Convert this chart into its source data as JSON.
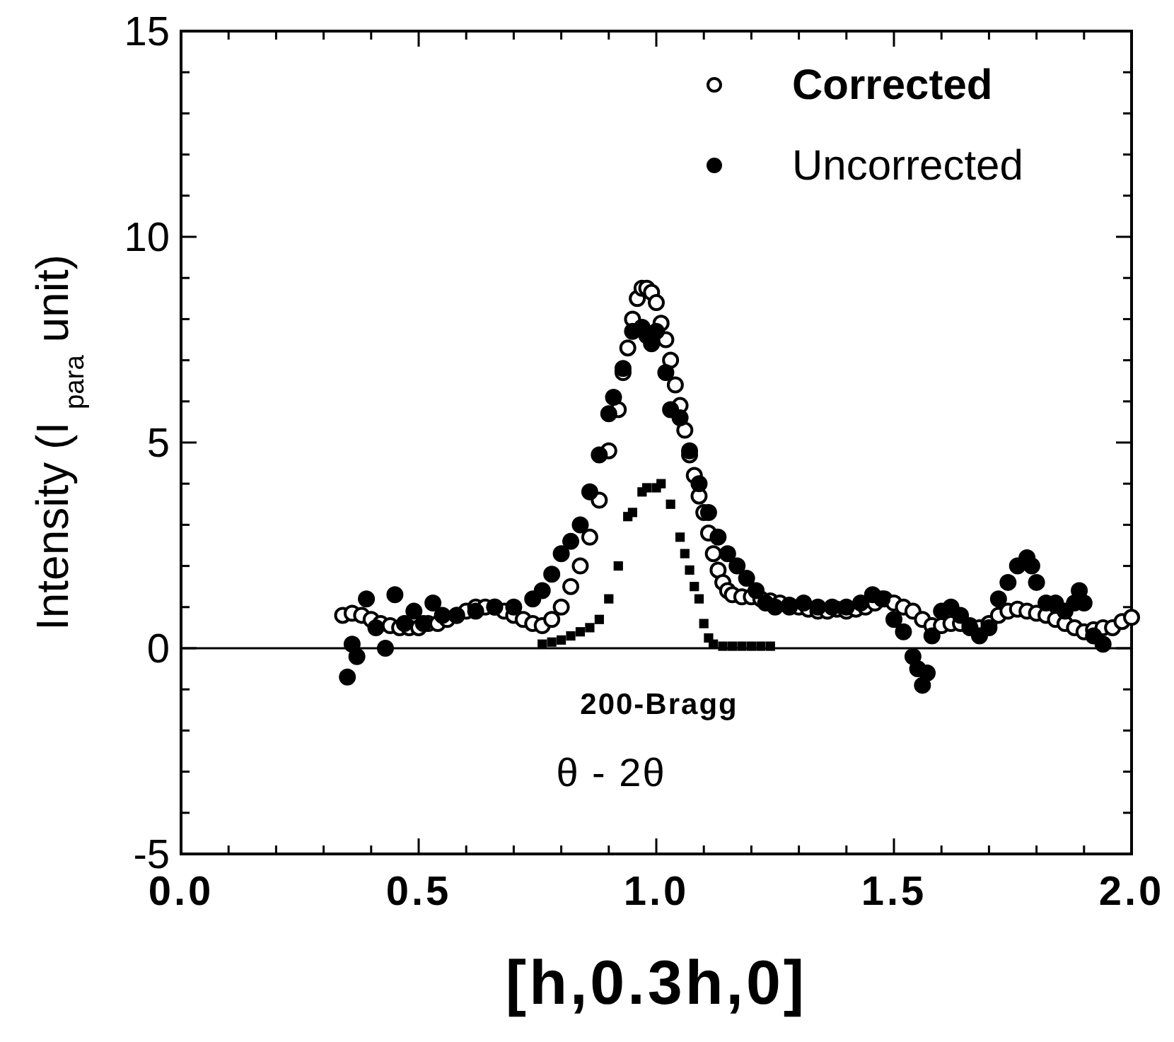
{
  "chart_data": {
    "type": "scatter",
    "xlabel": "[h,0.3h,0]",
    "ylabel": "Intensity  (I $_{para}$ unit)",
    "xlim": [
      0,
      2
    ],
    "ylim": [
      -5,
      15
    ],
    "xticks": [
      {
        "value": 0,
        "label": "0.0"
      },
      {
        "value": 0.1,
        "label": null
      },
      {
        "value": 0.2,
        "label": null
      },
      {
        "value": 0.3,
        "label": null
      },
      {
        "value": 0.4,
        "label": null
      },
      {
        "value": 0.5,
        "label": "0.5"
      },
      {
        "value": 0.6,
        "label": null
      },
      {
        "value": 0.7,
        "label": null
      },
      {
        "value": 0.8,
        "label": null
      },
      {
        "value": 0.9,
        "label": null
      },
      {
        "value": 1,
        "label": "1.0"
      },
      {
        "value": 1.1,
        "label": null
      },
      {
        "value": 1.2,
        "label": null
      },
      {
        "value": 1.3,
        "label": null
      },
      {
        "value": 1.4,
        "label": null
      },
      {
        "value": 1.5,
        "label": "1.5"
      },
      {
        "value": 1.6,
        "label": null
      },
      {
        "value": 1.7,
        "label": null
      },
      {
        "value": 1.8,
        "label": null
      },
      {
        "value": 1.9,
        "label": null
      },
      {
        "value": 2,
        "label": "2.0"
      }
    ],
    "yticks": [
      -5,
      {
        "value": -4,
        "label": null
      },
      {
        "value": -3,
        "label": null
      },
      {
        "value": -2,
        "label": null
      },
      {
        "value": -1,
        "label": null
      },
      0,
      {
        "value": 1,
        "label": null
      },
      {
        "value": 2,
        "label": null
      },
      {
        "value": 3,
        "label": null
      },
      {
        "value": 4,
        "label": null
      },
      5,
      {
        "value": 6,
        "label": null
      },
      {
        "value": 7,
        "label": null
      },
      {
        "value": 8,
        "label": null
      },
      {
        "value": 9,
        "label": null
      },
      10,
      {
        "value": 11,
        "label": null
      },
      {
        "value": 12,
        "label": null
      },
      {
        "value": 13,
        "label": null
      },
      {
        "value": 14,
        "label": null
      },
      15
    ],
    "legend": "top right",
    "ref_lines": [
      {
        "axis": "y",
        "value": 0,
        "color": "#000000",
        "line_style": "solid"
      }
    ],
    "annotations": [
      "200-Bragg",
      "θ - 2θ"
    ],
    "series": [
      {
        "name": "Corrected",
        "color": "#ffffff",
        "marker": "circle",
        "x": [
          0.34,
          0.36,
          0.38,
          0.4,
          0.42,
          0.44,
          0.46,
          0.48,
          0.5,
          0.52,
          0.54,
          0.56,
          0.58,
          0.6,
          0.62,
          0.64,
          0.66,
          0.68,
          0.7,
          0.72,
          0.74,
          0.76,
          0.78,
          0.8,
          0.82,
          0.84,
          0.86,
          0.88,
          0.9,
          0.92,
          0.93,
          0.94,
          0.95,
          0.96,
          0.97,
          0.98,
          0.99,
          1.0,
          1.01,
          1.02,
          1.03,
          1.04,
          1.05,
          1.06,
          1.07,
          1.08,
          1.09,
          1.1,
          1.11,
          1.12,
          1.13,
          1.14,
          1.15,
          1.16,
          1.18,
          1.2,
          1.22,
          1.24,
          1.26,
          1.28,
          1.3,
          1.32,
          1.34,
          1.36,
          1.38,
          1.4,
          1.42,
          1.44,
          1.46,
          1.48,
          1.5,
          1.52,
          1.54,
          1.56,
          1.58,
          1.6,
          1.62,
          1.64,
          1.66,
          1.68,
          1.7,
          1.72,
          1.74,
          1.76,
          1.78,
          1.8,
          1.82,
          1.84,
          1.86,
          1.88,
          1.9,
          1.92,
          1.94,
          1.96,
          1.98,
          2.0
        ],
        "values": [
          0.8,
          0.85,
          0.8,
          0.7,
          0.6,
          0.55,
          0.5,
          0.5,
          0.5,
          0.6,
          0.6,
          0.7,
          0.8,
          0.9,
          1.0,
          1.0,
          1.0,
          0.9,
          0.8,
          0.7,
          0.6,
          0.55,
          0.7,
          1.0,
          1.5,
          2.0,
          2.7,
          3.6,
          4.8,
          5.8,
          6.7,
          7.3,
          8.0,
          8.5,
          8.75,
          8.75,
          8.65,
          8.4,
          7.9,
          7.5,
          7.0,
          6.4,
          5.9,
          5.3,
          4.7,
          4.2,
          3.7,
          3.3,
          2.8,
          2.3,
          1.9,
          1.6,
          1.4,
          1.3,
          1.25,
          1.25,
          1.2,
          1.15,
          1.1,
          1.05,
          1.0,
          0.95,
          0.9,
          0.9,
          0.95,
          0.9,
          0.95,
          1.0,
          1.1,
          1.2,
          1.1,
          1.0,
          0.9,
          0.7,
          0.55,
          0.55,
          0.6,
          0.6,
          0.55,
          0.5,
          0.6,
          0.8,
          0.9,
          0.95,
          0.9,
          0.85,
          0.8,
          0.7,
          0.6,
          0.5,
          0.4,
          0.45,
          0.5,
          0.5,
          0.65,
          0.75
        ]
      },
      {
        "name": "Uncorrected",
        "color": "#000000",
        "marker": "circle",
        "x": [
          0.35,
          0.36,
          0.37,
          0.39,
          0.41,
          0.43,
          0.45,
          0.47,
          0.49,
          0.51,
          0.53,
          0.55,
          0.58,
          0.62,
          0.66,
          0.7,
          0.74,
          0.76,
          0.78,
          0.8,
          0.82,
          0.84,
          0.86,
          0.88,
          0.9,
          0.91,
          0.93,
          0.95,
          0.97,
          0.98,
          0.99,
          1.0,
          1.02,
          1.03,
          1.05,
          1.07,
          1.09,
          1.11,
          1.13,
          1.15,
          1.17,
          1.19,
          1.21,
          1.23,
          1.25,
          1.28,
          1.31,
          1.34,
          1.37,
          1.4,
          1.43,
          1.455,
          1.475,
          1.5,
          1.52,
          1.54,
          1.55,
          1.56,
          1.57,
          1.58,
          1.6,
          1.62,
          1.64,
          1.66,
          1.68,
          1.7,
          1.72,
          1.74,
          1.76,
          1.78,
          1.79,
          1.8,
          1.82,
          1.84,
          1.86,
          1.88,
          1.89,
          1.9,
          1.92,
          1.94
        ],
        "values": [
          -0.7,
          0.1,
          -0.2,
          1.2,
          0.5,
          0.0,
          1.3,
          0.6,
          0.9,
          0.6,
          1.1,
          0.8,
          0.8,
          0.9,
          1.0,
          1.0,
          1.2,
          1.4,
          1.8,
          2.3,
          2.6,
          3.0,
          3.8,
          4.7,
          5.7,
          6.1,
          6.8,
          7.7,
          7.8,
          7.6,
          7.4,
          7.7,
          6.7,
          5.8,
          5.6,
          4.8,
          4.0,
          3.3,
          2.7,
          2.3,
          2.0,
          1.7,
          1.4,
          1.1,
          1.0,
          1.0,
          1.1,
          1.0,
          1.0,
          1.0,
          1.1,
          1.3,
          1.2,
          0.7,
          0.4,
          -0.2,
          -0.5,
          -0.9,
          -0.6,
          0.3,
          0.9,
          1.0,
          0.8,
          0.5,
          0.3,
          0.5,
          1.2,
          1.6,
          2.0,
          2.2,
          2.0,
          1.6,
          1.1,
          1.1,
          0.9,
          1.1,
          1.4,
          1.1,
          0.3,
          0.1
        ]
      },
      {
        "color": "#000000",
        "marker": "square",
        "x": [
          0.76,
          0.78,
          0.8,
          0.82,
          0.84,
          0.86,
          0.88,
          0.9,
          0.92,
          0.94,
          0.95,
          0.97,
          0.98,
          1.0,
          1.01,
          1.03,
          1.05,
          1.06,
          1.07,
          1.08,
          1.09,
          1.1,
          1.11,
          1.12,
          1.14,
          1.16,
          1.18,
          1.2,
          1.22,
          1.24
        ],
        "values": [
          0.1,
          0.15,
          0.2,
          0.3,
          0.4,
          0.5,
          0.7,
          1.2,
          2.0,
          3.2,
          3.3,
          3.8,
          3.9,
          3.9,
          4.0,
          3.5,
          2.7,
          2.3,
          1.9,
          1.5,
          1.2,
          0.6,
          0.25,
          0.1,
          0.05,
          0.05,
          0.05,
          0.05,
          0.05,
          0.05
        ]
      }
    ]
  }
}
